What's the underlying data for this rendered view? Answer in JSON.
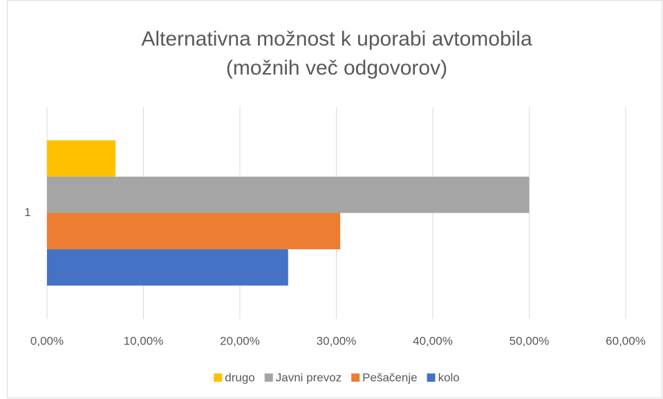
{
  "chart_data": {
    "type": "bar",
    "orientation": "horizontal",
    "title": [
      "Alternativna možnost k uporabi avtomobila",
      "(možnih več odgovorov)"
    ],
    "categories": [
      "1"
    ],
    "series": [
      {
        "name": "drugo",
        "color": "#ffc000",
        "values": [
          7.1
        ]
      },
      {
        "name": "Javni prevoz",
        "color": "#a5a5a5",
        "values": [
          50
        ]
      },
      {
        "name": "Pešačenje",
        "color": "#ed7d31",
        "values": [
          30.4
        ]
      },
      {
        "name": "kolo",
        "color": "#4472c4",
        "values": [
          25
        ]
      }
    ],
    "xlim": [
      0,
      60
    ],
    "xticks": [
      {
        "value": 0,
        "label": "0,00%"
      },
      {
        "value": 10,
        "label": "10,00%"
      },
      {
        "value": 20,
        "label": "20,00%"
      },
      {
        "value": 30,
        "label": "30,00%"
      },
      {
        "value": 40,
        "label": "40,00%"
      },
      {
        "value": 50,
        "label": "50,00%"
      },
      {
        "value": 60,
        "label": "60,00%"
      }
    ],
    "grid": true,
    "legend": "bottom"
  }
}
